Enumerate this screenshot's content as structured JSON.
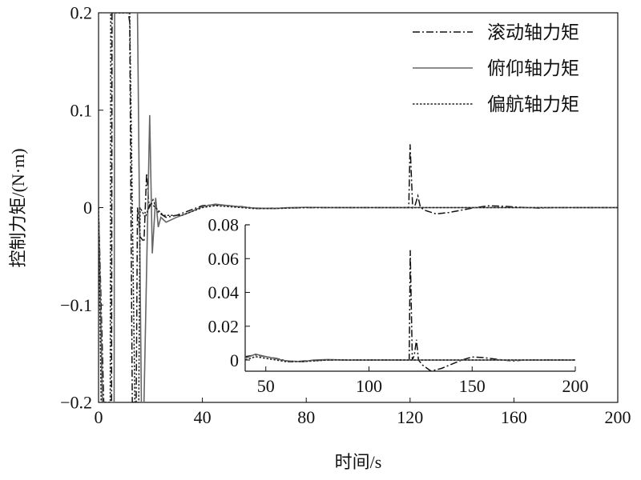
{
  "chart_data": {
    "type": "line",
    "title": "",
    "xlabel": "时间/s",
    "ylabel": "控制力矩/(N·m)",
    "xlim": [
      0,
      200
    ],
    "ylim": [
      -0.2,
      0.2
    ],
    "xticks": [
      "0",
      "40",
      "80",
      "120",
      "160",
      "200"
    ],
    "yticks": [
      "0.2",
      "0.1",
      "0",
      "−0.1",
      "−0.2"
    ],
    "grid": false,
    "legend_position": "top-right",
    "series": [
      {
        "name": "滚动轴力矩",
        "style": "dash-dot",
        "color": "#111111",
        "points": [
          [
            0,
            0
          ],
          [
            2,
            -0.2
          ],
          [
            5,
            -0.2
          ],
          [
            5.2,
            0.2
          ],
          [
            11.5,
            0.2
          ],
          [
            12,
            0.19
          ],
          [
            13,
            -0.2
          ],
          [
            14.5,
            -0.2
          ],
          [
            15,
            0
          ],
          [
            16,
            -0.03
          ],
          [
            17.5,
            -0.035
          ],
          [
            18.5,
            0.035
          ],
          [
            19.5,
            0
          ],
          [
            21,
            0.008
          ],
          [
            23,
            -0.005
          ],
          [
            26,
            -0.01
          ],
          [
            30,
            -0.008
          ],
          [
            40,
            0.002
          ],
          [
            45,
            0.003
          ],
          [
            55,
            0.001
          ],
          [
            62,
            -0.001
          ],
          [
            70,
            -0.0005
          ],
          [
            80,
            0
          ],
          [
            100,
            0
          ],
          [
            119.5,
            0
          ],
          [
            120,
            0.065
          ],
          [
            121,
            0
          ],
          [
            122,
            0.003
          ],
          [
            123,
            0.012
          ],
          [
            124,
            0
          ],
          [
            126,
            -0.003
          ],
          [
            130,
            -0.0065
          ],
          [
            135,
            -0.005
          ],
          [
            145,
            0
          ],
          [
            150,
            0.0018
          ],
          [
            155,
            0.0015
          ],
          [
            165,
            0
          ],
          [
            170,
            -0.0005
          ],
          [
            175,
            0
          ],
          [
            200,
            0
          ]
        ]
      },
      {
        "name": "俯仰轴力矩",
        "style": "solid",
        "color": "#666666",
        "points": [
          [
            0,
            0
          ],
          [
            1.5,
            -0.2
          ],
          [
            6,
            -0.2
          ],
          [
            6.2,
            0.2
          ],
          [
            15,
            0.2
          ],
          [
            16.5,
            -0.2
          ],
          [
            17.5,
            -0.2
          ],
          [
            19.7,
            0.095
          ],
          [
            20.7,
            -0.047
          ],
          [
            22,
            0.01
          ],
          [
            23,
            -0.02
          ],
          [
            24,
            -0.01
          ],
          [
            26,
            -0.015
          ],
          [
            30,
            -0.01
          ],
          [
            35,
            -0.005
          ],
          [
            40,
            0.001
          ],
          [
            45,
            0.0035
          ],
          [
            50,
            0.002
          ],
          [
            60,
            -0.0005
          ],
          [
            68,
            -0.001
          ],
          [
            73,
            0
          ],
          [
            80,
            0.0003
          ],
          [
            90,
            0
          ],
          [
            200,
            0
          ]
        ]
      },
      {
        "name": "偏航轴力矩",
        "style": "dotted",
        "color": "#222222",
        "points": [
          [
            0,
            0
          ],
          [
            1,
            -0.2
          ],
          [
            4.5,
            -0.2
          ],
          [
            4.7,
            0.2
          ],
          [
            12,
            0.2
          ],
          [
            14,
            -0.2
          ],
          [
            15.5,
            -0.2
          ],
          [
            16,
            0
          ],
          [
            18,
            -0.01
          ],
          [
            20,
            0.005
          ],
          [
            25,
            -0.008
          ],
          [
            32,
            -0.008
          ],
          [
            40,
            0
          ],
          [
            45,
            0.002
          ],
          [
            60,
            -0.001
          ],
          [
            70,
            -0.0008
          ],
          [
            80,
            0
          ],
          [
            200,
            0
          ]
        ]
      }
    ],
    "inset": {
      "xlim": [
        40,
        200
      ],
      "ylim": [
        -0.0066,
        0.08
      ],
      "xticks": [
        "50",
        "100",
        "150",
        "200"
      ],
      "yticks": [
        "0.08",
        "0.06",
        "0.04",
        "0.02",
        "0"
      ]
    }
  }
}
